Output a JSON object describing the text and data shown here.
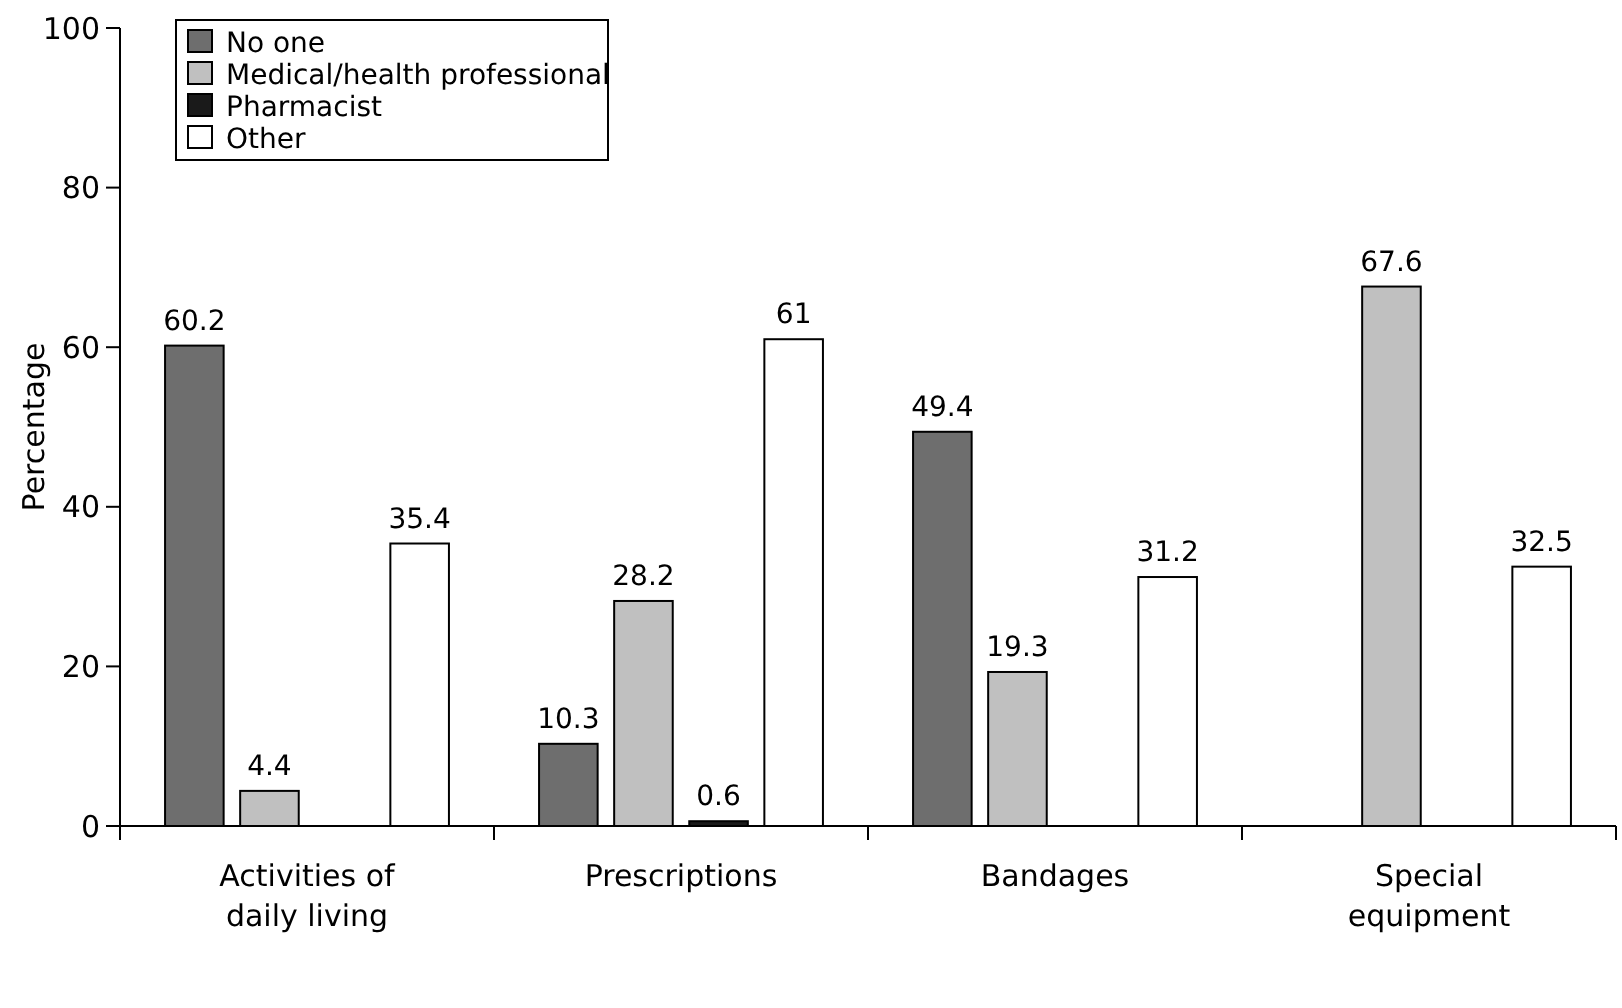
{
  "chart_data": {
    "type": "bar",
    "ylabel": "Percentage",
    "categories": [
      "Activities of daily living",
      "Prescriptions",
      "Bandages",
      "Special equipment"
    ],
    "series": [
      {
        "name": "No one",
        "color": "#6e6e6e",
        "values": [
          60.2,
          10.3,
          49.4,
          null
        ]
      },
      {
        "name": "Medical/health professional",
        "color": "#c0c0c0",
        "values": [
          4.4,
          28.2,
          19.3,
          67.6
        ]
      },
      {
        "name": "Pharmacist",
        "color": "#1a1a1a",
        "values": [
          null,
          0.6,
          null,
          null
        ]
      },
      {
        "name": "Other",
        "color": "#ffffff",
        "values": [
          35.4,
          61,
          31.2,
          32.5
        ]
      }
    ],
    "ylim": [
      0,
      100
    ],
    "yticks": [
      0,
      20,
      40,
      60,
      80,
      100
    ],
    "data_labels": true,
    "legend": "top left",
    "grid": false
  }
}
